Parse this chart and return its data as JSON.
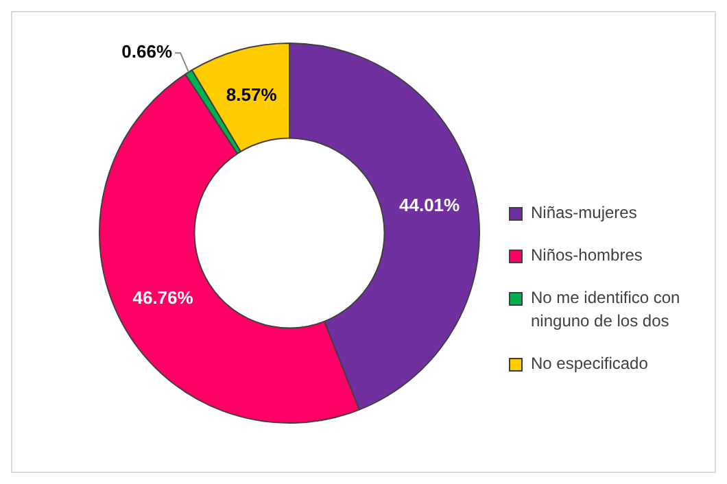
{
  "chart_data": {
    "type": "donut",
    "categories": [
      "Niñas-mujeres",
      "Niños-hombres",
      "No me identifico con ninguno de los dos",
      "No especificado"
    ],
    "values": [
      44.01,
      46.76,
      0.66,
      8.57
    ],
    "value_labels": [
      "44.01%",
      "46.76%",
      "0.66%",
      "8.57%"
    ],
    "colors": [
      "#7030a0",
      "#ff0066",
      "#00b050",
      "#ffcc00"
    ],
    "legend": "right"
  }
}
